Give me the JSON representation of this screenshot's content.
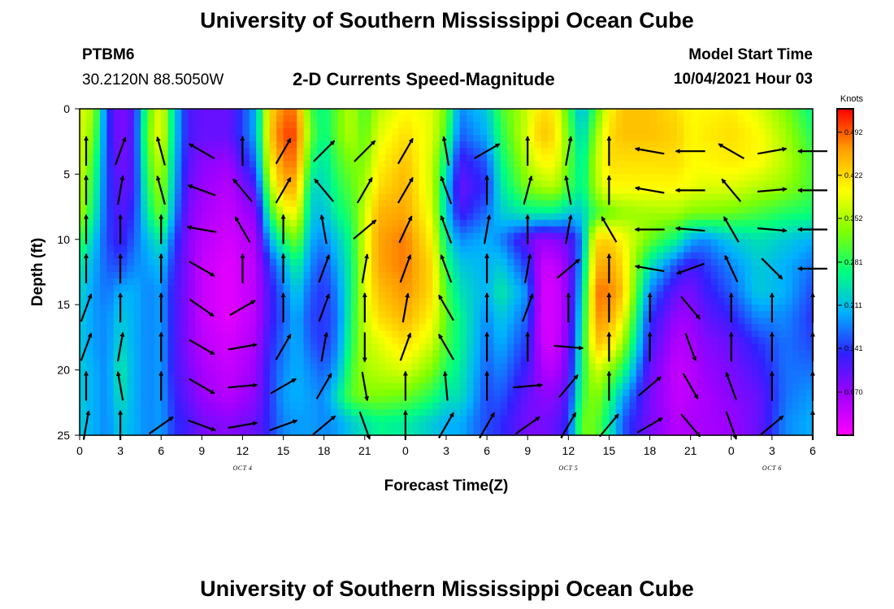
{
  "header": {
    "title": "University of Southern Mississippi Ocean Cube",
    "station_id": "PTBM6",
    "coordinates": "30.2120N  88.5050W",
    "center_title": "2-D Currents Speed-Magnitude",
    "model_label": "Model Start Time",
    "model_start": "10/04/2021 Hour 03"
  },
  "footer": {
    "title": "University of Southern Mississippi Ocean Cube"
  },
  "chart_data": {
    "type": "heatmap",
    "xlabel": "Forecast Time(Z)",
    "ylabel": "Depth (ft)",
    "x_tick_labels": [
      "0",
      "3",
      "6",
      "9",
      "12",
      "15",
      "18",
      "21",
      "0",
      "3",
      "6",
      "9",
      "12",
      "15",
      "18",
      "21",
      "0",
      "3",
      "6"
    ],
    "date_labels": [
      {
        "text": "OCT 4",
        "at_tick": 4
      },
      {
        "text": "OCT 5",
        "at_tick": 12
      },
      {
        "text": "OCT 6",
        "at_tick": 17
      }
    ],
    "forecast_hours_range": [
      0,
      54
    ],
    "depth_ticks": [
      0,
      5,
      10,
      15,
      20,
      25
    ],
    "depth_range": [
      0,
      25
    ],
    "colorbar": {
      "unit": "Knots",
      "ticks": [
        "0.492",
        "0.422",
        "0.352",
        "0.281",
        "0.211",
        "0.141",
        "0.070"
      ],
      "range": [
        0,
        0.53
      ],
      "colors": [
        "#ff00ff",
        "#a000ff",
        "#3020ff",
        "#00b0ff",
        "#00ff80",
        "#80ff00",
        "#ffff00",
        "#ffa000",
        "#ff0000"
      ]
    },
    "speed_columns": {
      "hours": [
        0,
        1,
        2,
        3,
        4,
        5,
        6,
        7,
        8,
        9,
        11,
        13,
        14,
        15,
        16,
        17,
        18,
        19,
        20,
        21,
        22,
        24,
        26,
        27,
        28,
        30,
        31,
        33,
        34,
        35,
        36,
        37,
        38,
        39,
        40,
        42,
        44,
        45,
        46,
        48,
        50,
        52,
        54
      ],
      "depths": [
        0,
        2,
        4,
        6,
        8,
        10,
        12,
        14,
        16,
        18,
        20,
        22,
        24,
        25
      ],
      "values": [
        [
          0.38,
          0.38,
          0.38,
          0.37,
          0.36,
          0.3,
          0.25,
          0.23,
          0.22,
          0.22,
          0.22,
          0.22,
          0.22,
          0.22
        ],
        [
          0.35,
          0.33,
          0.3,
          0.28,
          0.26,
          0.22,
          0.2,
          0.19,
          0.19,
          0.19,
          0.2,
          0.2,
          0.2,
          0.2
        ],
        [
          0.15,
          0.15,
          0.15,
          0.15,
          0.15,
          0.15,
          0.16,
          0.17,
          0.18,
          0.18,
          0.18,
          0.18,
          0.18,
          0.18
        ],
        [
          0.08,
          0.08,
          0.09,
          0.1,
          0.11,
          0.12,
          0.15,
          0.2,
          0.22,
          0.23,
          0.25,
          0.24,
          0.22,
          0.22
        ],
        [
          0.12,
          0.12,
          0.12,
          0.12,
          0.14,
          0.16,
          0.18,
          0.2,
          0.2,
          0.2,
          0.2,
          0.2,
          0.2,
          0.2
        ],
        [
          0.3,
          0.32,
          0.3,
          0.28,
          0.25,
          0.21,
          0.19,
          0.18,
          0.18,
          0.18,
          0.18,
          0.18,
          0.18,
          0.18
        ],
        [
          0.4,
          0.4,
          0.37,
          0.35,
          0.33,
          0.25,
          0.21,
          0.19,
          0.19,
          0.19,
          0.19,
          0.19,
          0.19,
          0.19
        ],
        [
          0.22,
          0.22,
          0.21,
          0.2,
          0.18,
          0.15,
          0.13,
          0.12,
          0.12,
          0.12,
          0.12,
          0.13,
          0.14,
          0.14
        ],
        [
          0.12,
          0.12,
          0.11,
          0.1,
          0.09,
          0.08,
          0.08,
          0.08,
          0.08,
          0.08,
          0.09,
          0.1,
          0.12,
          0.12
        ],
        [
          0.1,
          0.1,
          0.08,
          0.07,
          0.06,
          0.05,
          0.04,
          0.04,
          0.04,
          0.05,
          0.06,
          0.07,
          0.09,
          0.09
        ],
        [
          0.1,
          0.1,
          0.07,
          0.05,
          0.04,
          0.03,
          0.02,
          0.02,
          0.02,
          0.03,
          0.04,
          0.05,
          0.08,
          0.08
        ],
        [
          0.2,
          0.2,
          0.17,
          0.12,
          0.08,
          0.06,
          0.05,
          0.05,
          0.05,
          0.06,
          0.07,
          0.08,
          0.1,
          0.1
        ],
        [
          0.42,
          0.43,
          0.4,
          0.35,
          0.28,
          0.2,
          0.14,
          0.12,
          0.12,
          0.13,
          0.14,
          0.14,
          0.14,
          0.14
        ],
        [
          0.48,
          0.5,
          0.48,
          0.45,
          0.38,
          0.28,
          0.2,
          0.17,
          0.16,
          0.17,
          0.18,
          0.19,
          0.18,
          0.18
        ],
        [
          0.48,
          0.5,
          0.48,
          0.45,
          0.4,
          0.33,
          0.26,
          0.22,
          0.2,
          0.2,
          0.2,
          0.2,
          0.19,
          0.19
        ],
        [
          0.3,
          0.32,
          0.28,
          0.24,
          0.22,
          0.2,
          0.18,
          0.16,
          0.15,
          0.16,
          0.18,
          0.19,
          0.19,
          0.19
        ],
        [
          0.26,
          0.26,
          0.24,
          0.23,
          0.21,
          0.18,
          0.15,
          0.14,
          0.14,
          0.14,
          0.16,
          0.18,
          0.18,
          0.18
        ],
        [
          0.32,
          0.32,
          0.3,
          0.28,
          0.26,
          0.22,
          0.2,
          0.18,
          0.17,
          0.18,
          0.2,
          0.24,
          0.19,
          0.19
        ],
        [
          0.36,
          0.36,
          0.33,
          0.31,
          0.29,
          0.27,
          0.26,
          0.26,
          0.27,
          0.28,
          0.3,
          0.31,
          0.22,
          0.22
        ],
        [
          0.3,
          0.31,
          0.33,
          0.35,
          0.37,
          0.38,
          0.38,
          0.38,
          0.37,
          0.36,
          0.35,
          0.33,
          0.24,
          0.24
        ],
        [
          0.36,
          0.38,
          0.4,
          0.42,
          0.45,
          0.46,
          0.46,
          0.44,
          0.42,
          0.38,
          0.36,
          0.33,
          0.26,
          0.26
        ],
        [
          0.4,
          0.42,
          0.44,
          0.45,
          0.46,
          0.48,
          0.48,
          0.47,
          0.45,
          0.42,
          0.38,
          0.32,
          0.25,
          0.25
        ],
        [
          0.38,
          0.38,
          0.37,
          0.37,
          0.38,
          0.4,
          0.42,
          0.42,
          0.4,
          0.37,
          0.33,
          0.28,
          0.22,
          0.22
        ],
        [
          0.32,
          0.3,
          0.25,
          0.22,
          0.22,
          0.25,
          0.28,
          0.3,
          0.31,
          0.3,
          0.28,
          0.24,
          0.2,
          0.2
        ],
        [
          0.18,
          0.16,
          0.12,
          0.1,
          0.12,
          0.18,
          0.22,
          0.24,
          0.26,
          0.26,
          0.25,
          0.24,
          0.2,
          0.2
        ],
        [
          0.22,
          0.2,
          0.16,
          0.14,
          0.17,
          0.2,
          0.2,
          0.2,
          0.18,
          0.17,
          0.16,
          0.15,
          0.15,
          0.15
        ],
        [
          0.3,
          0.28,
          0.26,
          0.24,
          0.22,
          0.18,
          0.22,
          0.25,
          0.22,
          0.2,
          0.18,
          0.16,
          0.14,
          0.14
        ],
        [
          0.37,
          0.38,
          0.36,
          0.33,
          0.25,
          0.1,
          0.14,
          0.18,
          0.16,
          0.14,
          0.12,
          0.1,
          0.09,
          0.09
        ],
        [
          0.42,
          0.44,
          0.4,
          0.35,
          0.25,
          0.07,
          0.04,
          0.03,
          0.03,
          0.04,
          0.06,
          0.08,
          0.09,
          0.09
        ],
        [
          0.41,
          0.42,
          0.4,
          0.36,
          0.25,
          0.08,
          0.04,
          0.03,
          0.03,
          0.03,
          0.05,
          0.08,
          0.1,
          0.1
        ],
        [
          0.3,
          0.32,
          0.32,
          0.3,
          0.22,
          0.1,
          0.08,
          0.08,
          0.08,
          0.09,
          0.1,
          0.12,
          0.14,
          0.14
        ],
        [
          0.2,
          0.22,
          0.24,
          0.25,
          0.22,
          0.18,
          0.2,
          0.22,
          0.24,
          0.26,
          0.27,
          0.29,
          0.32,
          0.32
        ],
        [
          0.3,
          0.34,
          0.36,
          0.35,
          0.3,
          0.42,
          0.45,
          0.48,
          0.47,
          0.44,
          0.38,
          0.34,
          0.32,
          0.32
        ],
        [
          0.4,
          0.42,
          0.42,
          0.4,
          0.32,
          0.43,
          0.46,
          0.48,
          0.46,
          0.42,
          0.34,
          0.28,
          0.25,
          0.25
        ],
        [
          0.44,
          0.44,
          0.42,
          0.4,
          0.34,
          0.4,
          0.42,
          0.44,
          0.4,
          0.35,
          0.28,
          0.2,
          0.16,
          0.16
        ],
        [
          0.44,
          0.44,
          0.42,
          0.4,
          0.35,
          0.32,
          0.24,
          0.18,
          0.14,
          0.12,
          0.1,
          0.09,
          0.09,
          0.09
        ],
        [
          0.42,
          0.43,
          0.42,
          0.4,
          0.35,
          0.26,
          0.15,
          0.1,
          0.07,
          0.05,
          0.04,
          0.04,
          0.05,
          0.05
        ],
        [
          0.4,
          0.4,
          0.4,
          0.39,
          0.33,
          0.2,
          0.12,
          0.09,
          0.07,
          0.06,
          0.05,
          0.05,
          0.06,
          0.06
        ],
        [
          0.4,
          0.41,
          0.4,
          0.38,
          0.33,
          0.18,
          0.14,
          0.12,
          0.1,
          0.08,
          0.07,
          0.06,
          0.06,
          0.06
        ],
        [
          0.41,
          0.42,
          0.41,
          0.38,
          0.32,
          0.22,
          0.18,
          0.16,
          0.13,
          0.1,
          0.09,
          0.08,
          0.07,
          0.07
        ],
        [
          0.38,
          0.4,
          0.4,
          0.36,
          0.3,
          0.24,
          0.22,
          0.22,
          0.18,
          0.14,
          0.12,
          0.1,
          0.1,
          0.1
        ],
        [
          0.33,
          0.35,
          0.36,
          0.34,
          0.28,
          0.22,
          0.2,
          0.2,
          0.18,
          0.17,
          0.17,
          0.17,
          0.18,
          0.18
        ],
        [
          0.26,
          0.28,
          0.3,
          0.3,
          0.27,
          0.2,
          0.17,
          0.15,
          0.14,
          0.15,
          0.17,
          0.19,
          0.2,
          0.2
        ]
      ]
    },
    "vectors": {
      "hours": [
        0,
        3,
        6,
        9,
        12,
        15,
        18,
        21,
        24,
        27,
        30,
        33,
        36,
        39,
        42,
        45,
        48,
        51,
        54
      ],
      "depths": [
        2,
        5,
        8,
        11,
        14,
        17,
        20,
        23
      ],
      "bearing_deg": [
        [
          0,
          20,
          345,
          300,
          0,
          30,
          45,
          45,
          30,
          350,
          60,
          0,
          10,
          0,
          280,
          270,
          300,
          80,
          270
        ],
        [
          0,
          10,
          345,
          290,
          320,
          30,
          320,
          30,
          30,
          340,
          0,
          15,
          350,
          0,
          280,
          270,
          320,
          85,
          270
        ],
        [
          0,
          0,
          0,
          280,
          330,
          0,
          350,
          50,
          25,
          340,
          10,
          0,
          10,
          330,
          270,
          275,
          330,
          95,
          270
        ],
        [
          0,
          0,
          0,
          120,
          0,
          0,
          20,
          10,
          20,
          340,
          0,
          10,
          50,
          0,
          280,
          250,
          335,
          135,
          270
        ],
        [
          20,
          0,
          0,
          125,
          60,
          0,
          20,
          0,
          10,
          330,
          0,
          20,
          0,
          0,
          0,
          140,
          0,
          0,
          0
        ],
        [
          20,
          10,
          0,
          120,
          80,
          30,
          10,
          180,
          20,
          330,
          0,
          0,
          95,
          0,
          0,
          160,
          0,
          0,
          0
        ],
        [
          0,
          350,
          0,
          120,
          85,
          60,
          30,
          170,
          0,
          355,
          0,
          85,
          40,
          0,
          50,
          150,
          340,
          0,
          0
        ],
        [
          10,
          0,
          55,
          110,
          80,
          70,
          50,
          160,
          0,
          30,
          30,
          55,
          30,
          40,
          60,
          140,
          160,
          50,
          0
        ]
      ]
    }
  }
}
